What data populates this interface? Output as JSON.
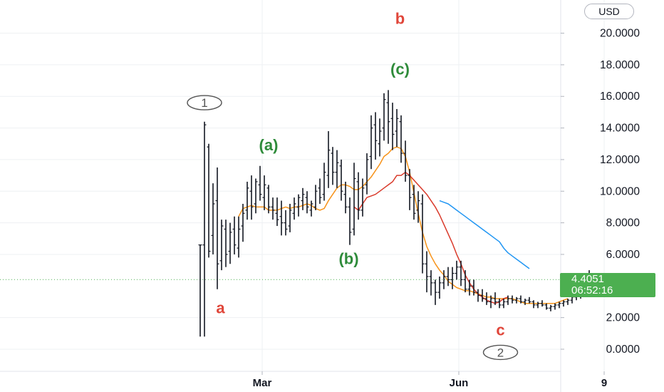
{
  "currency": "USD",
  "last_price": "4.4051",
  "countdown": "06:52:16",
  "colors": {
    "background": "#ffffff",
    "grid": "#eef0f3",
    "candles": "#131722",
    "ma_fast": "#f7931a",
    "ma_mid": "#d93a2b",
    "ma_slow": "#2196f3",
    "price_line": "#4caf50",
    "wave_red": "#e0463a",
    "wave_green": "#2e8b3a",
    "wave_gray": "#555555"
  },
  "chart_data": {
    "type": "candlestick",
    "y_axis": {
      "side": "right",
      "range": [
        -1.4,
        22.1
      ],
      "ticks": [
        "20.0000",
        "18.0000",
        "16.0000",
        "14.0000",
        "12.0000",
        "10.0000",
        "8.0000",
        "6.0000",
        "2.0000",
        "0.0000"
      ],
      "tick_values": [
        20,
        18,
        16,
        14,
        12,
        10,
        8,
        6,
        2,
        0
      ]
    },
    "x_axis": {
      "range_days": [
        0,
        168
      ],
      "ticks": [
        {
          "label": "Mar",
          "day": 29
        },
        {
          "label": "Jun",
          "day": 121
        },
        {
          "label": "9",
          "day": 189
        }
      ]
    },
    "grid": true,
    "series": [
      {
        "kind": "ohlc",
        "color": "#131722",
        "start_day": 0,
        "values": [
          [
            6.6,
            6.6,
            0.8,
            6.6
          ],
          [
            6.6,
            14.4,
            0.8,
            14.2
          ],
          [
            12.8,
            13.0,
            5.8,
            6.2
          ],
          [
            7.2,
            10.5,
            6.0,
            9.2
          ],
          [
            9.4,
            11.5,
            3.8,
            5.4
          ],
          [
            5.6,
            8.2,
            5.0,
            7.8
          ],
          [
            7.6,
            8.2,
            5.2,
            6.0
          ],
          [
            6.2,
            8.0,
            5.4,
            7.4
          ],
          [
            7.6,
            8.4,
            6.0,
            6.6
          ],
          [
            6.4,
            8.4,
            5.8,
            7.6
          ],
          [
            7.8,
            9.2,
            6.8,
            8.6
          ],
          [
            8.8,
            10.6,
            8.2,
            10.2
          ],
          [
            10.0,
            11.0,
            8.2,
            9.0
          ],
          [
            9.2,
            10.8,
            8.6,
            10.6
          ],
          [
            10.4,
            11.6,
            9.4,
            9.8
          ],
          [
            9.6,
            11.0,
            8.8,
            10.4
          ],
          [
            10.2,
            10.4,
            8.6,
            9.0
          ],
          [
            9.0,
            9.6,
            8.2,
            8.8
          ],
          [
            8.6,
            9.6,
            7.8,
            8.2
          ],
          [
            8.4,
            9.4,
            7.2,
            8.0
          ],
          [
            8.0,
            8.8,
            7.2,
            7.6
          ],
          [
            7.8,
            9.2,
            7.4,
            8.8
          ],
          [
            8.6,
            9.6,
            8.2,
            9.2
          ],
          [
            9.0,
            9.8,
            8.4,
            9.6
          ],
          [
            9.4,
            10.2,
            8.8,
            9.8
          ],
          [
            9.6,
            10.0,
            8.6,
            9.0
          ],
          [
            8.8,
            9.4,
            8.4,
            9.2
          ],
          [
            9.0,
            10.4,
            8.8,
            10.0
          ],
          [
            10.2,
            10.8,
            9.2,
            9.6
          ],
          [
            9.8,
            11.8,
            9.4,
            11.2
          ],
          [
            11.0,
            13.8,
            10.2,
            12.6
          ],
          [
            12.4,
            12.8,
            10.4,
            11.2
          ],
          [
            11.2,
            12.6,
            10.2,
            11.8
          ],
          [
            11.6,
            12.0,
            9.4,
            10.0
          ],
          [
            9.8,
            10.6,
            8.6,
            9.0
          ],
          [
            9.0,
            9.6,
            6.6,
            7.4
          ],
          [
            7.6,
            11.8,
            7.2,
            10.8
          ],
          [
            10.6,
            11.2,
            8.2,
            8.8
          ],
          [
            8.8,
            10.8,
            8.4,
            10.2
          ],
          [
            10.4,
            12.4,
            9.8,
            12.0
          ],
          [
            12.2,
            14.8,
            11.4,
            14.0
          ],
          [
            14.2,
            15.0,
            12.0,
            13.2
          ],
          [
            13.0,
            14.6,
            12.2,
            13.8
          ],
          [
            14.0,
            16.2,
            13.2,
            15.8
          ],
          [
            15.6,
            16.4,
            13.0,
            14.4
          ],
          [
            14.6,
            15.6,
            12.6,
            13.6
          ],
          [
            13.8,
            15.2,
            12.8,
            14.6
          ],
          [
            14.4,
            14.8,
            11.8,
            12.4
          ],
          [
            12.4,
            13.2,
            10.6,
            11.0
          ],
          [
            11.0,
            11.4,
            8.8,
            9.6
          ],
          [
            9.8,
            10.4,
            8.2,
            8.6
          ],
          [
            8.8,
            10.0,
            8.0,
            9.4
          ],
          [
            9.2,
            9.8,
            4.8,
            5.4
          ],
          [
            5.4,
            6.2,
            3.6,
            4.6
          ],
          [
            4.6,
            5.0,
            3.4,
            4.2
          ],
          [
            4.2,
            4.4,
            2.8,
            3.6
          ],
          [
            3.6,
            4.6,
            3.2,
            4.2
          ],
          [
            4.2,
            5.0,
            3.8,
            4.6
          ],
          [
            4.6,
            5.2,
            4.0,
            4.4
          ],
          [
            4.4,
            5.2,
            3.8,
            4.8
          ],
          [
            4.8,
            5.6,
            4.4,
            5.2
          ],
          [
            5.2,
            5.6,
            4.0,
            4.4
          ],
          [
            4.4,
            5.0,
            3.6,
            3.8
          ],
          [
            3.8,
            4.4,
            3.4,
            4.0
          ],
          [
            4.0,
            4.4,
            3.4,
            3.6
          ],
          [
            3.6,
            3.8,
            3.0,
            3.4
          ],
          [
            3.4,
            3.8,
            3.0,
            3.2
          ],
          [
            3.2,
            3.6,
            2.8,
            3.0
          ],
          [
            3.0,
            3.4,
            2.6,
            3.2
          ],
          [
            3.2,
            3.6,
            2.8,
            3.0
          ],
          [
            3.0,
            3.2,
            2.6,
            2.8
          ],
          [
            2.8,
            3.2,
            2.6,
            3.0
          ],
          [
            3.0,
            3.4,
            2.8,
            3.2
          ],
          [
            3.2,
            3.4,
            2.9,
            3.1
          ],
          [
            3.1,
            3.3,
            2.9,
            3.2
          ],
          [
            3.2,
            3.4,
            2.9,
            3.0
          ],
          [
            3.0,
            3.2,
            2.8,
            3.1
          ],
          [
            3.1,
            3.3,
            2.9,
            3.0
          ],
          [
            3.0,
            3.1,
            2.6,
            2.8
          ],
          [
            2.8,
            3.0,
            2.6,
            2.9
          ],
          [
            2.9,
            3.1,
            2.7,
            2.8
          ],
          [
            2.8,
            2.9,
            2.5,
            2.6
          ],
          [
            2.6,
            2.8,
            2.4,
            2.7
          ],
          [
            2.7,
            2.9,
            2.5,
            2.8
          ],
          [
            2.8,
            3.0,
            2.6,
            2.9
          ],
          [
            2.9,
            3.1,
            2.7,
            3.0
          ],
          [
            3.0,
            3.2,
            2.8,
            3.1
          ],
          [
            3.1,
            3.4,
            2.9,
            3.3
          ],
          [
            3.3,
            3.6,
            3.1,
            3.4
          ],
          [
            3.4,
            3.8,
            3.2,
            3.6
          ],
          [
            3.6,
            4.0,
            3.4,
            3.8
          ],
          [
            3.8,
            5.0,
            3.6,
            4.4
          ]
        ]
      },
      {
        "kind": "line",
        "color": "#f7931a",
        "start_day": 18,
        "values": [
          8.4,
          8.9,
          9.0,
          9.1,
          9.0,
          9.0,
          9.0,
          8.8,
          8.8,
          8.8,
          8.9,
          9.0,
          8.9,
          9.0,
          9.0,
          9.1,
          9.2,
          9.1,
          8.9,
          8.8,
          8.9,
          9.4,
          9.8,
          10.2,
          10.4,
          10.4,
          10.3,
          10.1,
          10.1,
          10.3,
          10.6,
          10.9,
          11.3,
          11.7,
          12.2,
          12.4,
          12.7,
          12.8,
          12.7,
          12.2,
          11.2,
          9.9,
          8.6,
          7.4,
          6.5,
          5.9,
          5.4,
          5.0,
          4.7,
          4.3,
          4.1,
          3.9,
          3.8,
          3.7,
          3.7,
          3.6,
          3.5,
          3.4,
          3.3,
          3.3,
          3.2,
          3.2,
          3.2,
          3.2,
          3.2,
          3.1,
          3.0,
          2.9,
          2.9,
          2.9,
          2.9,
          2.9,
          2.9,
          2.9,
          2.9,
          3.0,
          3.1,
          3.2
        ]
      },
      {
        "kind": "line",
        "color": "#d93a2b",
        "start_day": 72,
        "values": [
          9.0,
          8.8,
          9.2,
          9.6,
          9.7,
          9.8,
          10.0,
          10.2,
          10.4,
          10.6,
          11.0,
          11.0,
          11.2,
          11.0,
          10.7,
          10.4,
          10.1,
          9.8,
          9.4,
          9.0,
          8.5,
          7.9,
          7.3,
          6.7,
          6.0,
          5.4,
          4.7,
          4.2,
          3.8,
          3.5,
          3.3,
          3.1,
          3.0,
          2.9,
          3.0,
          3.2,
          3.3
        ]
      },
      {
        "kind": "line",
        "color": "#2196f3",
        "start_day": 112,
        "values": [
          9.4,
          9.3,
          9.2,
          9.0,
          8.8,
          8.6,
          8.4,
          8.2,
          8.0,
          7.8,
          7.6,
          7.4,
          7.2,
          7.0,
          6.8,
          6.4,
          6.1,
          5.9,
          5.7,
          5.5,
          5.3,
          5.1
        ]
      }
    ],
    "last_price_line": {
      "value": 4.4051
    },
    "annotations": [
      {
        "text": "b",
        "color": "red",
        "x_day": 93.5,
        "y": 20.9
      },
      {
        "text": "(c)",
        "color": "green",
        "x_day": 93.5,
        "y": 17.7
      },
      {
        "text": "(a)",
        "color": "green",
        "x_day": 32,
        "y": 12.9
      },
      {
        "text": "(b)",
        "color": "green",
        "x_day": 69.5,
        "y": 5.7
      },
      {
        "text": "a",
        "color": "red",
        "x_day": 9.5,
        "y": 2.6
      },
      {
        "text": "c",
        "color": "red",
        "x_day": 140.5,
        "y": 1.2
      },
      {
        "text": "1",
        "shape": "circle",
        "color": "gray",
        "x_day": 2,
        "y": 15.6
      },
      {
        "text": "2",
        "shape": "circle",
        "color": "gray",
        "x_day": 140.5,
        "y": -0.2
      }
    ]
  }
}
